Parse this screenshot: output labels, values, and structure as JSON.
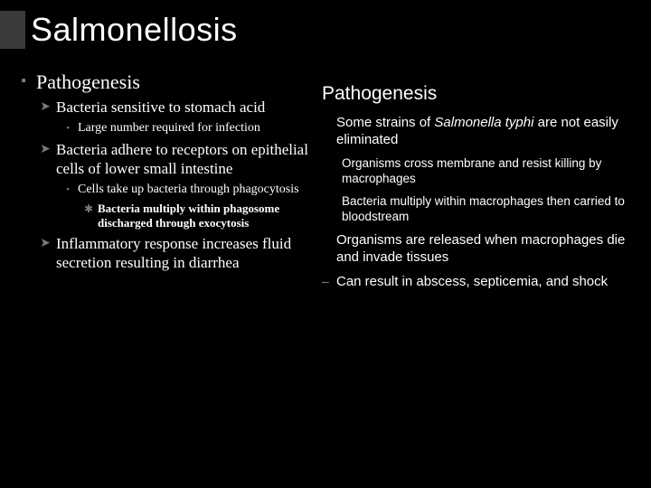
{
  "title": "Salmonellosis",
  "left": {
    "l1": "Pathogenesis",
    "l2a": "Bacteria sensitive to stomach acid",
    "l3a": "Large number required for infection",
    "l2b": "Bacteria adhere to receptors on epithelial cells of lower small intestine",
    "l3b": "Cells take up bacteria through phagocytosis",
    "l4a": "Bacteria multiply within phagosome discharged through exocytosis",
    "l2c": "Inflammatory response increases fluid secretion resulting in diarrhea"
  },
  "right": {
    "heading": "Pathogenesis",
    "i1_pre": "Some strains of ",
    "i1_ital": "Salmonella typhi",
    "i1_post": " are not easily eliminated",
    "s1": "Organisms cross membrane and resist killing by macrophages",
    "s2": "Bacteria multiply within macrophages then carried to bloodstream",
    "i2": "Organisms are released when macrophages die and invade tissues",
    "i3": "Can result in abscess, septicemia, and shock"
  },
  "markers": {
    "square": "▪",
    "chevron": "➤",
    "dot": "•",
    "star": "✱",
    "dash": "–"
  }
}
